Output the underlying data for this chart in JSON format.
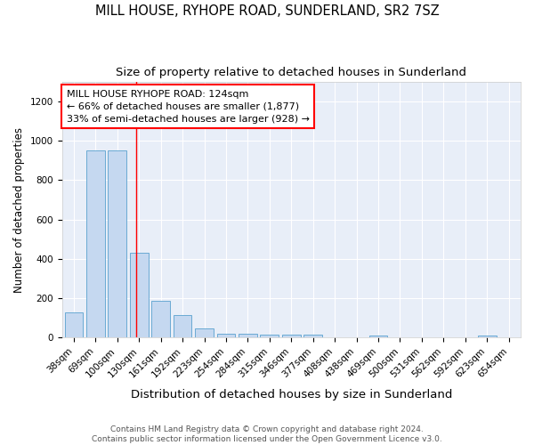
{
  "title": "MILL HOUSE, RYHOPE ROAD, SUNDERLAND, SR2 7SZ",
  "subtitle": "Size of property relative to detached houses in Sunderland",
  "xlabel": "Distribution of detached houses by size in Sunderland",
  "ylabel": "Number of detached properties",
  "categories": [
    "38sqm",
    "69sqm",
    "100sqm",
    "130sqm",
    "161sqm",
    "192sqm",
    "223sqm",
    "254sqm",
    "284sqm",
    "315sqm",
    "346sqm",
    "377sqm",
    "408sqm",
    "438sqm",
    "469sqm",
    "500sqm",
    "531sqm",
    "562sqm",
    "592sqm",
    "623sqm",
    "654sqm"
  ],
  "values": [
    130,
    950,
    950,
    430,
    185,
    115,
    45,
    20,
    20,
    14,
    14,
    14,
    0,
    0,
    10,
    0,
    0,
    0,
    0,
    10,
    0
  ],
  "bar_color": "#c5d8f0",
  "bar_edge_color": "#6aaad4",
  "bar_width": 0.85,
  "ylim": [
    0,
    1300
  ],
  "yticks": [
    0,
    200,
    400,
    600,
    800,
    1000,
    1200
  ],
  "red_line_x": 2.88,
  "annotation_line1": "MILL HOUSE RYHOPE ROAD: 124sqm",
  "annotation_line2": "← 66% of detached houses are smaller (1,877)",
  "annotation_line3": "33% of semi-detached houses are larger (928) →",
  "bg_color": "#e8eef8",
  "fig_color": "#ffffff",
  "footer_line1": "Contains HM Land Registry data © Crown copyright and database right 2024.",
  "footer_line2": "Contains public sector information licensed under the Open Government Licence v3.0.",
  "title_fontsize": 10.5,
  "subtitle_fontsize": 9.5,
  "tick_fontsize": 7.5,
  "ylabel_fontsize": 8.5,
  "xlabel_fontsize": 9.5,
  "annotation_fontsize": 8,
  "footer_fontsize": 6.5
}
